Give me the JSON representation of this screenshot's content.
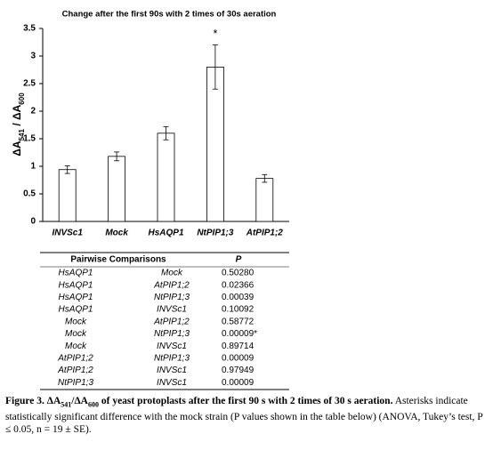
{
  "chart_data": {
    "type": "bar",
    "title": "Change after the first 90s with 2 times of 30s aeration",
    "ylabel": [
      "ΔA",
      "541",
      " / ΔA",
      "600"
    ],
    "categories": [
      "INVSc1",
      "Mock",
      "HsAQP1",
      "NtPIP1;3",
      "AtPIP1;2"
    ],
    "values": [
      0.94,
      1.18,
      1.6,
      2.8,
      0.78
    ],
    "errors": [
      0.07,
      0.08,
      0.12,
      0.4,
      0.07
    ],
    "color": "#ffffff",
    "ylim": [
      0,
      3.5
    ],
    "yticks": [
      0,
      0.5,
      1,
      1.5,
      2,
      2.5,
      3,
      3.5
    ],
    "annotations": [
      {
        "text": "*",
        "x": "NtPIP1;3"
      }
    ]
  },
  "table": {
    "header": [
      "Pairwise Comparisons",
      "P"
    ],
    "rows": [
      [
        "HsAQP1",
        "Mock",
        "0.50280"
      ],
      [
        "HsAQP1",
        "AtPIP1;2",
        "0.02366"
      ],
      [
        "HsAQP1",
        "NtPIP1;3",
        "0.00039"
      ],
      [
        "HsAQP1",
        "INVSc1",
        "0.10092"
      ],
      [
        "Mock",
        "AtPIP1;2",
        "0.58772"
      ],
      [
        "Mock",
        "NtPIP1;3",
        "0.00009*"
      ],
      [
        "Mock",
        "INVSc1",
        "0.89714"
      ],
      [
        "AtPIP1;2",
        "NtPIP1;3",
        "0.00009"
      ],
      [
        "AtPIP1;2",
        "INVSc1",
        "0.97949"
      ],
      [
        "NtPIP1;3",
        "INVSc1",
        "0.00009"
      ]
    ]
  },
  "caption": {
    "label": "Figure 3.",
    "heading": [
      "ΔA",
      "541",
      "/ΔA",
      "600",
      " of yeast protoplasts after the first 90 s with 2 times of 30 s aeration."
    ],
    "text": " Asterisks indicate statistically significant difference with the mock strain (P values shown in the table below) (ANOVA, Tukey’s test, P ≤ 0.05, n = 19 ± SE)."
  }
}
